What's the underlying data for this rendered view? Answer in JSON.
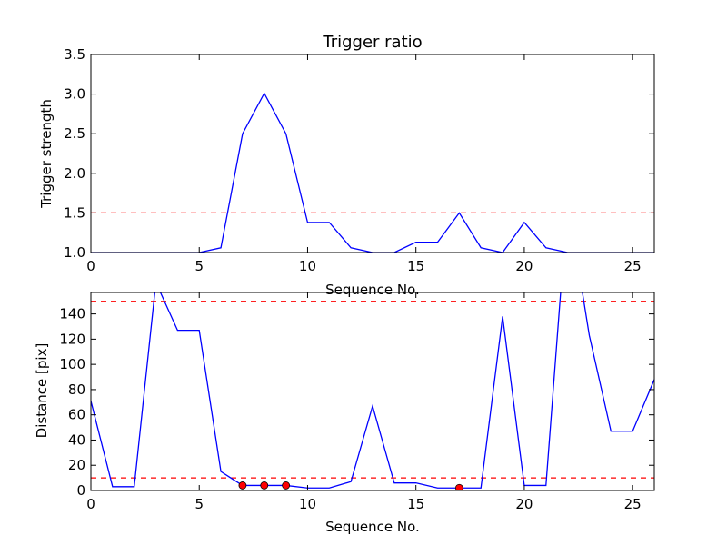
{
  "chart_data": [
    {
      "type": "line",
      "title": "Trigger ratio",
      "xlabel": "Sequence No.",
      "ylabel": "Trigger strength",
      "xlim": [
        0,
        26
      ],
      "ylim": [
        1.0,
        3.5
      ],
      "xticks": [
        0,
        5,
        10,
        15,
        20,
        25
      ],
      "yticks": [
        1.0,
        1.5,
        2.0,
        2.5,
        3.0,
        3.5
      ],
      "ytick_labels": [
        "1.0",
        "1.5",
        "2.0",
        "2.5",
        "3.0",
        "3.5"
      ],
      "grid": false,
      "series": [
        {
          "color": "#0000ff",
          "x": [
            0,
            1,
            2,
            3,
            4,
            5,
            6,
            7,
            8,
            9,
            10,
            11,
            12,
            13,
            14,
            15,
            16,
            17,
            18,
            19,
            20,
            21,
            22,
            23,
            24,
            25,
            26
          ],
          "values": [
            1.0,
            1.0,
            1.0,
            1.0,
            1.0,
            1.0,
            1.06,
            2.5,
            3.01,
            2.5,
            1.38,
            1.38,
            1.06,
            1.0,
            1.0,
            1.13,
            1.13,
            1.5,
            1.06,
            1.0,
            1.38,
            1.06,
            1.0,
            1.0,
            1.0,
            1.0,
            1.0
          ]
        }
      ],
      "thresholds": [
        {
          "y": 1.5,
          "color": "#ff0000",
          "style": "dashed"
        }
      ]
    },
    {
      "type": "line",
      "title": "",
      "xlabel": "Sequence No.",
      "ylabel": "Distance [pix]",
      "xlim": [
        0,
        26
      ],
      "ylim": [
        0,
        157
      ],
      "xticks": [
        0,
        5,
        10,
        15,
        20,
        25
      ],
      "yticks": [
        0,
        20,
        40,
        60,
        80,
        100,
        120,
        140
      ],
      "ytick_labels": [
        "0",
        "20",
        "40",
        "60",
        "80",
        "100",
        "120",
        "140"
      ],
      "grid": false,
      "series": [
        {
          "color": "#0000ff",
          "x": [
            0,
            1,
            2,
            3,
            4,
            5,
            6,
            7,
            8,
            9,
            10,
            11,
            12,
            13,
            14,
            15,
            16,
            17,
            18,
            19,
            20,
            21,
            22,
            23,
            24,
            25,
            26
          ],
          "values": [
            71,
            3,
            3,
            165,
            127,
            127,
            15,
            4,
            4,
            4,
            2,
            2,
            7,
            67,
            6,
            6,
            2,
            2,
            2,
            138,
            4,
            4,
            230,
            123,
            47,
            47,
            88
          ]
        }
      ],
      "markers": {
        "color": "#ff0000",
        "x": [
          7,
          8,
          9,
          17
        ],
        "values": [
          4,
          4,
          4,
          2
        ]
      },
      "thresholds": [
        {
          "y": 150,
          "color": "#ff0000",
          "style": "dashed"
        },
        {
          "y": 10,
          "color": "#ff0000",
          "style": "dashed"
        }
      ]
    }
  ]
}
